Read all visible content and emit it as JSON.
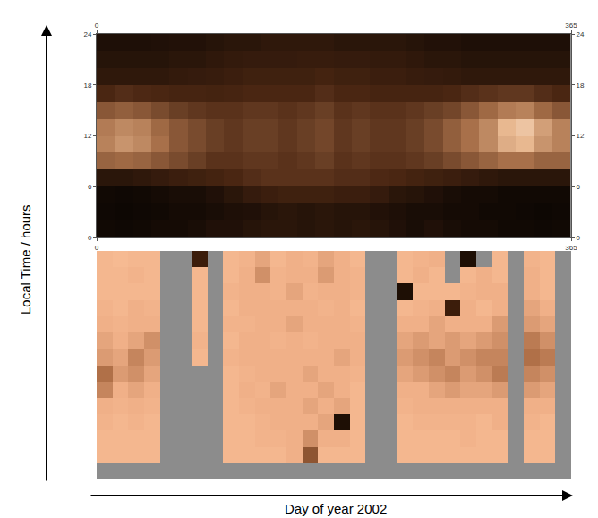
{
  "x_label": "Day of year 2002",
  "y_label": "Local Time / hours",
  "chart_data": [
    {
      "type": "heatmap",
      "x": [
        7,
        21,
        35,
        49,
        63,
        77,
        91,
        105,
        119,
        133,
        147,
        161,
        175,
        189,
        203,
        217,
        231,
        245,
        259,
        273,
        287,
        301,
        315,
        329,
        343,
        357
      ],
      "y": [
        1,
        3,
        5,
        7,
        9,
        11,
        13,
        15,
        17,
        19,
        21,
        23
      ],
      "xlim": [
        0,
        365
      ],
      "xticks": [
        0,
        365
      ],
      "ylim": [
        0,
        24
      ],
      "yticks": [
        0,
        6,
        12,
        18,
        24
      ],
      "zlim": [
        0,
        1
      ],
      "z": [
        [
          0.08,
          0.07,
          0.08,
          0.1,
          0.1,
          0.12,
          0.15,
          0.15,
          0.18,
          0.2,
          0.2,
          0.18,
          0.2,
          0.18,
          0.2,
          0.18,
          0.15,
          0.12,
          0.15,
          0.12,
          0.1,
          0.1,
          0.08,
          0.08,
          0.07,
          0.08
        ],
        [
          0.07,
          0.06,
          0.07,
          0.08,
          0.1,
          0.1,
          0.12,
          0.14,
          0.15,
          0.18,
          0.2,
          0.18,
          0.2,
          0.18,
          0.18,
          0.16,
          0.14,
          0.12,
          0.12,
          0.1,
          0.1,
          0.08,
          0.08,
          0.07,
          0.06,
          0.07
        ],
        [
          0.08,
          0.07,
          0.08,
          0.1,
          0.12,
          0.12,
          0.15,
          0.2,
          0.25,
          0.28,
          0.3,
          0.3,
          0.3,
          0.28,
          0.28,
          0.25,
          0.2,
          0.18,
          0.15,
          0.12,
          0.1,
          0.1,
          0.08,
          0.08,
          0.08,
          0.08
        ],
        [
          0.2,
          0.2,
          0.22,
          0.25,
          0.28,
          0.3,
          0.32,
          0.35,
          0.38,
          0.4,
          0.4,
          0.4,
          0.4,
          0.38,
          0.38,
          0.36,
          0.35,
          0.32,
          0.3,
          0.28,
          0.25,
          0.22,
          0.2,
          0.2,
          0.2,
          0.2
        ],
        [
          0.6,
          0.62,
          0.6,
          0.55,
          0.5,
          0.45,
          0.4,
          0.4,
          0.42,
          0.42,
          0.4,
          0.42,
          0.45,
          0.4,
          0.42,
          0.4,
          0.4,
          0.42,
          0.45,
          0.5,
          0.55,
          0.6,
          0.65,
          0.65,
          0.6,
          0.6
        ],
        [
          0.7,
          0.75,
          0.72,
          0.65,
          0.55,
          0.5,
          0.45,
          0.42,
          0.45,
          0.45,
          0.42,
          0.45,
          0.48,
          0.42,
          0.45,
          0.42,
          0.42,
          0.45,
          0.5,
          0.58,
          0.65,
          0.72,
          0.82,
          0.85,
          0.75,
          0.7
        ],
        [
          0.68,
          0.72,
          0.7,
          0.62,
          0.55,
          0.5,
          0.45,
          0.42,
          0.45,
          0.45,
          0.42,
          0.45,
          0.48,
          0.42,
          0.45,
          0.42,
          0.42,
          0.45,
          0.5,
          0.58,
          0.65,
          0.72,
          0.85,
          0.88,
          0.78,
          0.7
        ],
        [
          0.55,
          0.58,
          0.55,
          0.5,
          0.45,
          0.42,
          0.4,
          0.4,
          0.42,
          0.42,
          0.4,
          0.42,
          0.45,
          0.4,
          0.42,
          0.4,
          0.4,
          0.42,
          0.45,
          0.48,
          0.55,
          0.62,
          0.68,
          0.7,
          0.62,
          0.55
        ],
        [
          0.35,
          0.38,
          0.36,
          0.35,
          0.33,
          0.33,
          0.32,
          0.33,
          0.35,
          0.35,
          0.35,
          0.35,
          0.38,
          0.35,
          0.35,
          0.33,
          0.33,
          0.33,
          0.33,
          0.35,
          0.38,
          0.4,
          0.42,
          0.42,
          0.38,
          0.35
        ],
        [
          0.22,
          0.22,
          0.22,
          0.22,
          0.24,
          0.25,
          0.26,
          0.28,
          0.3,
          0.3,
          0.3,
          0.3,
          0.32,
          0.3,
          0.3,
          0.28,
          0.28,
          0.26,
          0.25,
          0.24,
          0.22,
          0.22,
          0.22,
          0.22,
          0.22,
          0.22
        ],
        [
          0.18,
          0.18,
          0.18,
          0.18,
          0.2,
          0.2,
          0.22,
          0.24,
          0.25,
          0.25,
          0.25,
          0.26,
          0.26,
          0.25,
          0.25,
          0.24,
          0.24,
          0.22,
          0.2,
          0.2,
          0.18,
          0.18,
          0.18,
          0.18,
          0.18,
          0.18
        ],
        [
          0.14,
          0.14,
          0.14,
          0.15,
          0.16,
          0.16,
          0.18,
          0.2,
          0.2,
          0.22,
          0.22,
          0.22,
          0.22,
          0.2,
          0.2,
          0.2,
          0.2,
          0.18,
          0.16,
          0.16,
          0.14,
          0.14,
          0.14,
          0.14,
          0.14,
          0.14
        ]
      ]
    },
    {
      "type": "heatmap",
      "tick_labels": false,
      "zlim": [
        0,
        1
      ],
      "z": [
        [
          null,
          null,
          null,
          null,
          null,
          null,
          null,
          null,
          null,
          null,
          null,
          null,
          null,
          null,
          null,
          null,
          null,
          null,
          null,
          null,
          null,
          null,
          null,
          null,
          null,
          null,
          null,
          null,
          null,
          null
        ],
        [
          0.2,
          0.2,
          0.2,
          0.2,
          null,
          null,
          null,
          null,
          0.2,
          0.2,
          0.2,
          0.2,
          0.3,
          0.7,
          0.2,
          0.2,
          0.2,
          null,
          null,
          0.2,
          0.2,
          0.2,
          0.2,
          0.2,
          0.2,
          0.2,
          null,
          0.2,
          0.2,
          null
        ],
        [
          0.2,
          0.2,
          0.2,
          0.2,
          null,
          null,
          null,
          null,
          0.2,
          0.2,
          0.25,
          0.25,
          0.3,
          0.45,
          0.3,
          0.3,
          0.2,
          null,
          null,
          0.2,
          0.2,
          0.2,
          0.2,
          0.25,
          0.2,
          0.2,
          null,
          0.2,
          0.2,
          null
        ],
        [
          0.25,
          0.2,
          0.25,
          0.2,
          null,
          null,
          null,
          null,
          0.2,
          0.2,
          0.25,
          0.3,
          0.3,
          0.3,
          0.35,
          0.95,
          0.2,
          null,
          null,
          0.2,
          0.25,
          0.25,
          0.25,
          0.25,
          0.2,
          0.3,
          null,
          0.25,
          0.2,
          null
        ],
        [
          0.3,
          0.25,
          0.3,
          0.25,
          null,
          null,
          null,
          null,
          0.2,
          0.25,
          0.3,
          0.3,
          0.3,
          0.35,
          0.3,
          0.35,
          0.2,
          null,
          null,
          0.25,
          0.3,
          0.3,
          0.3,
          0.3,
          0.3,
          0.3,
          null,
          0.3,
          0.3,
          null
        ],
        [
          0.5,
          0.3,
          0.35,
          0.3,
          null,
          null,
          null,
          null,
          0.2,
          0.3,
          0.25,
          0.35,
          0.3,
          0.3,
          0.35,
          0.3,
          0.2,
          null,
          null,
          0.3,
          0.3,
          0.35,
          0.4,
          0.35,
          0.35,
          0.4,
          null,
          0.4,
          0.35,
          null
        ],
        [
          0.6,
          0.4,
          0.45,
          0.35,
          null,
          null,
          null,
          null,
          0.2,
          0.25,
          0.3,
          0.3,
          0.3,
          0.35,
          0.3,
          0.3,
          0.25,
          null,
          null,
          0.35,
          0.4,
          0.45,
          0.5,
          0.4,
          0.45,
          0.55,
          null,
          0.5,
          0.45,
          null
        ],
        [
          0.4,
          0.35,
          0.5,
          0.4,
          null,
          null,
          0.2,
          null,
          0.25,
          0.3,
          0.3,
          0.3,
          0.3,
          0.3,
          0.3,
          0.35,
          0.3,
          null,
          null,
          0.4,
          0.45,
          0.5,
          0.4,
          0.45,
          0.5,
          0.5,
          null,
          0.6,
          0.55,
          null
        ],
        [
          0.35,
          0.3,
          0.35,
          0.45,
          null,
          null,
          0.25,
          null,
          0.2,
          0.3,
          0.3,
          0.25,
          0.3,
          0.25,
          0.3,
          0.3,
          0.3,
          null,
          null,
          0.35,
          0.4,
          0.35,
          0.4,
          0.35,
          0.4,
          0.45,
          null,
          0.55,
          0.45,
          null
        ],
        [
          0.3,
          0.25,
          0.3,
          0.3,
          null,
          null,
          0.2,
          null,
          0.25,
          0.25,
          0.3,
          0.3,
          0.35,
          0.3,
          0.3,
          0.3,
          0.25,
          null,
          null,
          0.3,
          0.3,
          0.35,
          0.3,
          0.3,
          0.3,
          0.4,
          null,
          0.4,
          0.35,
          null
        ],
        [
          0.25,
          0.2,
          0.3,
          0.25,
          null,
          null,
          0.2,
          null,
          0.2,
          0.3,
          0.3,
          0.3,
          0.3,
          0.3,
          0.25,
          0.3,
          0.2,
          null,
          null,
          0.2,
          0.25,
          0.3,
          0.9,
          0.3,
          0.2,
          0.3,
          null,
          0.35,
          0.3,
          null
        ],
        [
          0.2,
          0.2,
          0.2,
          0.2,
          null,
          null,
          0.2,
          null,
          0.25,
          0.3,
          0.3,
          0.25,
          0.35,
          0.25,
          0.3,
          0.3,
          0.25,
          null,
          null,
          0.95,
          0.2,
          0.2,
          0.2,
          0.25,
          0.3,
          0.3,
          null,
          0.3,
          0.2,
          null
        ],
        [
          0.2,
          0.2,
          0.25,
          0.2,
          null,
          null,
          0.2,
          null,
          0.2,
          0.3,
          0.45,
          0.25,
          0.3,
          0.3,
          0.4,
          0.3,
          0.25,
          null,
          null,
          0.2,
          0.3,
          0.2,
          null,
          0.2,
          0.3,
          0.2,
          null,
          0.3,
          0.2,
          null
        ],
        [
          0.2,
          0.15,
          0.2,
          0.2,
          null,
          null,
          0.9,
          null,
          0.2,
          0.25,
          0.35,
          0.2,
          0.3,
          0.25,
          0.35,
          0.3,
          0.2,
          null,
          null,
          0.2,
          0.25,
          0.3,
          null,
          0.95,
          null,
          0.2,
          null,
          0.25,
          0.2,
          null
        ]
      ]
    }
  ]
}
